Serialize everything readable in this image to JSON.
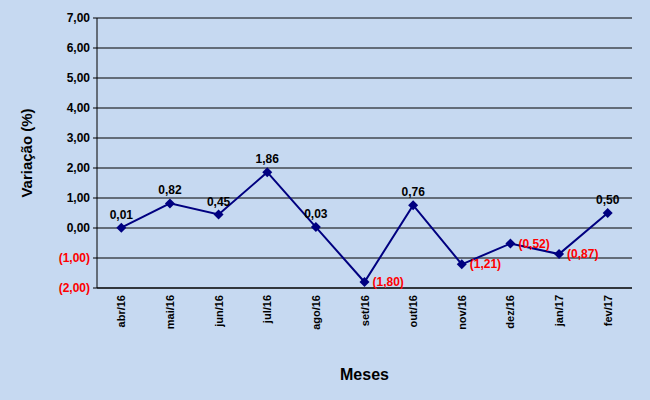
{
  "chart_data": {
    "type": "line",
    "x_label": "Meses",
    "y_label": "Variação (%)",
    "categories": [
      "abr/16",
      "mai/16",
      "jun/16",
      "jul/16",
      "ago/16",
      "set/16",
      "out/16",
      "nov/16",
      "dez/16",
      "jan/17",
      "fev/17"
    ],
    "values": [
      0.01,
      0.82,
      0.45,
      1.86,
      0.03,
      -1.8,
      0.76,
      -1.21,
      -0.52,
      -0.87,
      0.5
    ],
    "value_labels": [
      "0,01",
      "0,82",
      "0,45",
      "1,86",
      "0,03",
      "(1,80)",
      "0,76",
      "(1,21)",
      "(0,52)",
      "(0,87)",
      "0,50"
    ],
    "color": "#000080",
    "marker": "diamond",
    "ylim": [
      -2,
      7
    ],
    "yticks": [
      {
        "value": -2,
        "label": "(2,00)"
      },
      {
        "value": -1,
        "label": "(1,00)"
      },
      {
        "value": 0,
        "label": "0,00"
      },
      {
        "value": 1,
        "label": "1,00"
      },
      {
        "value": 2,
        "label": "2,00"
      },
      {
        "value": 3,
        "label": "3,00"
      },
      {
        "value": 4,
        "label": "4,00"
      },
      {
        "value": 5,
        "label": "5,00"
      },
      {
        "value": 6,
        "label": "6,00"
      },
      {
        "value": 7,
        "label": "7,00"
      }
    ],
    "grid": true,
    "data_labels": true
  }
}
